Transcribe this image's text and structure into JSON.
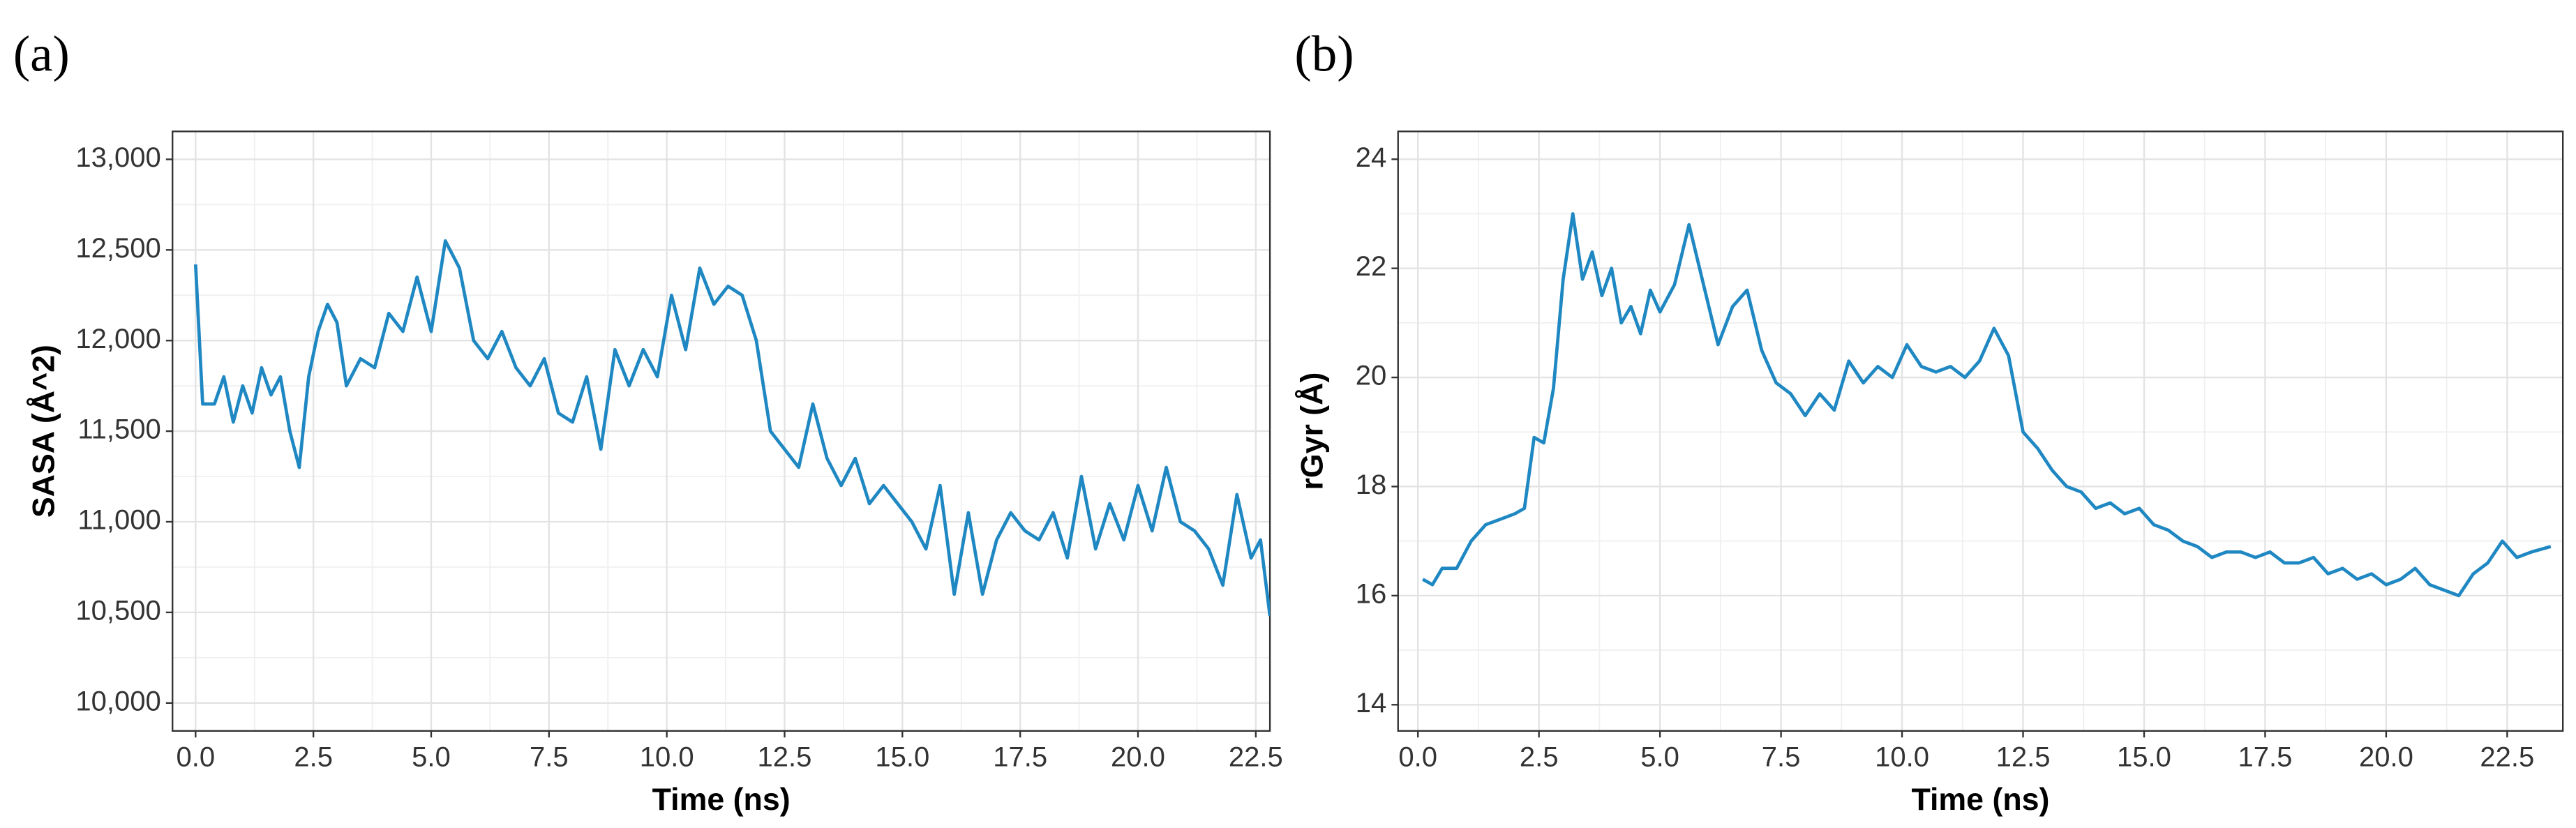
{
  "chart_data": [
    {
      "type": "line",
      "label": "(a)",
      "xlabel": "Time (ns)",
      "ylabel": "SASA (Å^2)",
      "color": "#1f88c2",
      "grid": true,
      "xlim": [
        -0.49,
        22.8
      ],
      "ylim": [
        9846,
        13154
      ],
      "xticks": [
        {
          "value": 0,
          "label": "0.0"
        },
        2.5,
        {
          "value": 5,
          "label": "5.0"
        },
        7.5,
        {
          "value": 10,
          "label": "10.0"
        },
        12.5,
        {
          "value": 15,
          "label": "15.0"
        },
        17.5,
        {
          "value": 20,
          "label": "20.0"
        },
        22.5
      ],
      "yticks": [
        {
          "value": 10000,
          "label": "10,000"
        },
        {
          "value": 10500,
          "label": "10,500"
        },
        {
          "value": 11000,
          "label": "11,000"
        },
        {
          "value": 11500,
          "label": "11,500"
        },
        {
          "value": 12000,
          "label": "12,000"
        },
        {
          "value": 12500,
          "label": "12,500"
        },
        {
          "value": 13000,
          "label": "13,000"
        }
      ],
      "x": [
        0,
        0.15,
        0.4,
        0.6,
        0.8,
        1.0,
        1.2,
        1.4,
        1.6,
        1.8,
        2.0,
        2.2,
        2.4,
        2.6,
        2.8,
        3.0,
        3.2,
        3.5,
        3.8,
        4.1,
        4.4,
        4.7,
        5.0,
        5.3,
        5.6,
        5.9,
        6.2,
        6.5,
        6.8,
        7.1,
        7.4,
        7.7,
        8.0,
        8.3,
        8.6,
        8.9,
        9.2,
        9.5,
        9.8,
        10.1,
        10.4,
        10.7,
        11.0,
        11.3,
        11.6,
        11.9,
        12.2,
        12.5,
        12.8,
        13.1,
        13.4,
        13.7,
        14.0,
        14.3,
        14.6,
        14.9,
        15.2,
        15.5,
        15.8,
        16.1,
        16.4,
        16.7,
        17.0,
        17.3,
        17.6,
        17.9,
        18.2,
        18.5,
        18.8,
        19.1,
        19.4,
        19.7,
        20.0,
        20.3,
        20.6,
        20.9,
        21.2,
        21.5,
        21.8,
        22.1,
        22.4,
        22.6,
        22.8
      ],
      "values": [
        12420,
        11650,
        11650,
        11800,
        11550,
        11750,
        11600,
        11850,
        11700,
        11800,
        11500,
        11300,
        11800,
        12050,
        12200,
        12100,
        11750,
        11900,
        11850,
        12150,
        12050,
        12350,
        12050,
        12550,
        12400,
        12000,
        11900,
        12050,
        11850,
        11750,
        11900,
        11600,
        11550,
        11800,
        11400,
        11950,
        11750,
        11950,
        11800,
        12250,
        11950,
        12400,
        12200,
        12300,
        12250,
        12000,
        11500,
        11400,
        11300,
        11650,
        11350,
        11200,
        11350,
        11100,
        11200,
        11100,
        11000,
        10850,
        11200,
        10600,
        11050,
        10600,
        10900,
        11050,
        10950,
        10900,
        11050,
        10800,
        11250,
        10850,
        11100,
        10900,
        11200,
        10950,
        11300,
        11000,
        10950,
        10850,
        10650,
        11150,
        10800,
        10900,
        10480
      ]
    },
    {
      "type": "line",
      "label": "(b)",
      "xlabel": "Time (ns)",
      "ylabel": "rGyr (Å)",
      "color": "#1f88c2",
      "grid": true,
      "xlim": [
        -0.41,
        23.65
      ],
      "ylim": [
        13.52,
        24.51
      ],
      "xticks": [
        {
          "value": 0,
          "label": "0.0"
        },
        2.5,
        {
          "value": 5,
          "label": "5.0"
        },
        7.5,
        {
          "value": 10,
          "label": "10.0"
        },
        12.5,
        {
          "value": 15,
          "label": "15.0"
        },
        17.5,
        {
          "value": 20,
          "label": "20.0"
        },
        22.5
      ],
      "yticks": [
        14,
        16,
        18,
        20,
        22,
        24
      ],
      "x": [
        0.1,
        0.3,
        0.5,
        0.8,
        1.1,
        1.4,
        1.7,
        2.0,
        2.2,
        2.4,
        2.6,
        2.8,
        3.0,
        3.2,
        3.4,
        3.6,
        3.8,
        4.0,
        4.2,
        4.4,
        4.6,
        4.8,
        5.0,
        5.3,
        5.6,
        5.9,
        6.2,
        6.5,
        6.8,
        7.1,
        7.4,
        7.7,
        8.0,
        8.3,
        8.6,
        8.9,
        9.2,
        9.5,
        9.8,
        10.1,
        10.4,
        10.7,
        11.0,
        11.3,
        11.6,
        11.9,
        12.2,
        12.5,
        12.8,
        13.1,
        13.4,
        13.7,
        14.0,
        14.3,
        14.6,
        14.9,
        15.2,
        15.5,
        15.8,
        16.1,
        16.4,
        16.7,
        17.0,
        17.3,
        17.6,
        17.9,
        18.2,
        18.5,
        18.8,
        19.1,
        19.4,
        19.7,
        20.0,
        20.3,
        20.6,
        20.9,
        21.2,
        21.5,
        21.8,
        22.1,
        22.4,
        22.7,
        23.0,
        23.4
      ],
      "values": [
        16.3,
        16.2,
        16.5,
        16.5,
        17.0,
        17.3,
        17.4,
        17.5,
        17.6,
        18.9,
        18.8,
        19.8,
        21.8,
        23.0,
        21.8,
        22.3,
        21.5,
        22.0,
        21.0,
        21.3,
        20.8,
        21.6,
        21.2,
        21.7,
        22.8,
        21.7,
        20.6,
        21.3,
        21.6,
        20.5,
        19.9,
        19.7,
        19.3,
        19.7,
        19.4,
        20.3,
        19.9,
        20.2,
        20.0,
        20.6,
        20.2,
        20.1,
        20.2,
        20.0,
        20.3,
        20.9,
        20.4,
        19.0,
        18.7,
        18.3,
        18.0,
        17.9,
        17.6,
        17.7,
        17.5,
        17.6,
        17.3,
        17.2,
        17.0,
        16.9,
        16.7,
        16.8,
        16.8,
        16.7,
        16.8,
        16.6,
        16.6,
        16.7,
        16.4,
        16.5,
        16.3,
        16.4,
        16.2,
        16.3,
        16.5,
        16.2,
        16.1,
        16.0,
        16.4,
        16.6,
        17.0,
        16.7,
        16.8,
        16.9
      ]
    }
  ]
}
